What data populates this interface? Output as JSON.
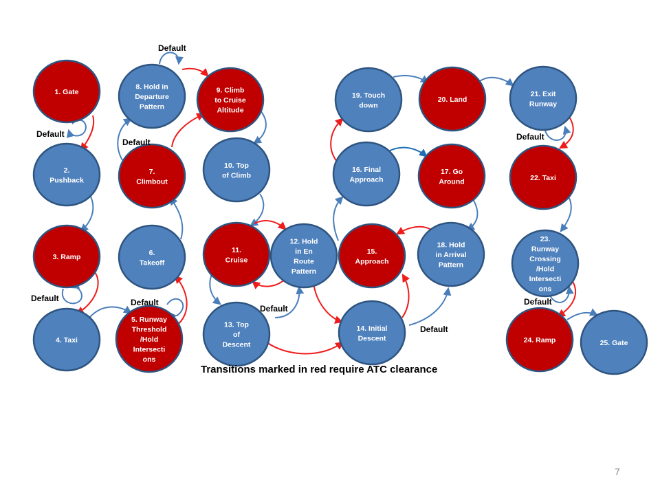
{
  "colors": {
    "red": "#c00000",
    "blue": "#4f81bd",
    "border": "#2e5480",
    "red_arrow": "#ee1c1c",
    "blue_arrow": "#4a7ebb",
    "dark_blue_arrow": "#1f6fb5"
  },
  "nodes": [
    {
      "id": 1,
      "lines": [
        "1. Gate"
      ],
      "color": "red"
    },
    {
      "id": 2,
      "lines": [
        "2.",
        "Pushback"
      ],
      "color": "blue"
    },
    {
      "id": 3,
      "lines": [
        "3. Ramp"
      ],
      "color": "red"
    },
    {
      "id": 4,
      "lines": [
        "4. Taxi"
      ],
      "color": "blue"
    },
    {
      "id": 5,
      "lines": [
        "5. Runway",
        "Threshold",
        "/Hold",
        "Intersecti",
        "ons"
      ],
      "color": "red"
    },
    {
      "id": 6,
      "lines": [
        "6.",
        "Takeoff"
      ],
      "color": "blue"
    },
    {
      "id": 7,
      "lines": [
        "7.",
        "Climbout"
      ],
      "color": "red"
    },
    {
      "id": 8,
      "lines": [
        "8. Hold in",
        "Departure",
        "Pattern"
      ],
      "color": "blue"
    },
    {
      "id": 9,
      "lines": [
        "9. Climb",
        "to Cruise",
        "Altitude"
      ],
      "color": "red"
    },
    {
      "id": 10,
      "lines": [
        "10. Top",
        "of Climb"
      ],
      "color": "blue"
    },
    {
      "id": 11,
      "lines": [
        "11.",
        "Cruise"
      ],
      "color": "red"
    },
    {
      "id": 12,
      "lines": [
        "12. Hold",
        "in En",
        "Route",
        "Pattern"
      ],
      "color": "blue"
    },
    {
      "id": 13,
      "lines": [
        "13. Top",
        "of",
        "Descent"
      ],
      "color": "blue"
    },
    {
      "id": 14,
      "lines": [
        "14. Initial",
        "Descent"
      ],
      "color": "blue"
    },
    {
      "id": 15,
      "lines": [
        "15.",
        "Approach"
      ],
      "color": "red"
    },
    {
      "id": 16,
      "lines": [
        "16. Final",
        "Approach"
      ],
      "color": "blue"
    },
    {
      "id": 17,
      "lines": [
        "17. Go",
        "Around"
      ],
      "color": "red"
    },
    {
      "id": 18,
      "lines": [
        "18. Hold",
        "in Arrival",
        "Pattern"
      ],
      "color": "blue"
    },
    {
      "id": 19,
      "lines": [
        "19. Touch",
        "down"
      ],
      "color": "blue"
    },
    {
      "id": 20,
      "lines": [
        "20. Land"
      ],
      "color": "red"
    },
    {
      "id": 21,
      "lines": [
        "21. Exit",
        "Runway"
      ],
      "color": "blue"
    },
    {
      "id": 22,
      "lines": [
        "22. Taxi"
      ],
      "color": "red"
    },
    {
      "id": 23,
      "lines": [
        "23.",
        "Runway",
        "Crossing",
        "/Hold",
        "Intersecti",
        "ons"
      ],
      "color": "blue"
    },
    {
      "id": 24,
      "lines": [
        "24. Ramp"
      ],
      "color": "red"
    },
    {
      "id": 25,
      "lines": [
        "25. Gate"
      ],
      "color": "blue"
    }
  ],
  "default_label": "Default",
  "default_label_count": 10,
  "caption": "Transitions marked in red require ATC clearance",
  "page_number": "7"
}
